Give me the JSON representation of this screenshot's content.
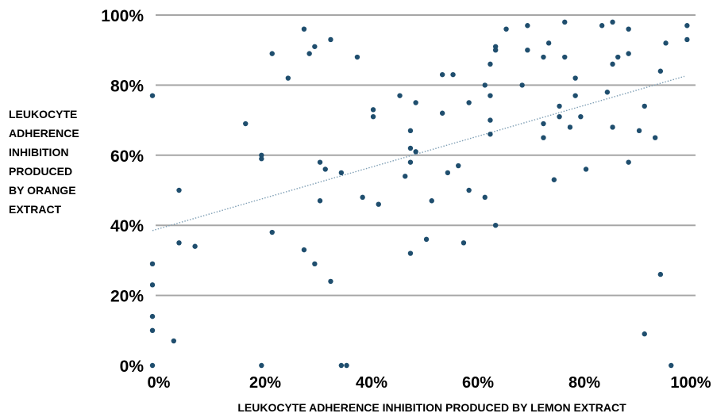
{
  "chart_data": {
    "type": "scatter",
    "title": "",
    "xlabel": "LEUKOCYTE ADHERENCE INHIBITION PRODUCED BY LEMON EXTRACT",
    "ylabel_lines": [
      "LEUKOCYTE",
      "ADHERENCE",
      "INHIBITION",
      "PRODUCED",
      "BY ORANGE",
      "EXTRACT"
    ],
    "xlim": [
      0,
      100
    ],
    "ylim": [
      0,
      100
    ],
    "x_ticks": [
      0,
      20,
      40,
      60,
      80,
      100
    ],
    "x_tick_labels": [
      "0%",
      "20%",
      "40%",
      "60%",
      "80%",
      "100%"
    ],
    "y_ticks": [
      0,
      20,
      40,
      60,
      80,
      100
    ],
    "y_tick_labels": [
      "0%",
      "20%",
      "40%",
      "60%",
      "80%",
      "100%"
    ],
    "grid": "horizontal",
    "colors": {
      "points": "#1f4e6e",
      "gridlines": "#a6a6a6",
      "trendline": "#7f9fb5"
    },
    "trendline": {
      "style": "dotted",
      "x": [
        0,
        100
      ],
      "y": [
        38.5,
        82.5
      ]
    },
    "points": [
      {
        "x": 0,
        "y": 77
      },
      {
        "x": 0,
        "y": 29
      },
      {
        "x": 0,
        "y": 23
      },
      {
        "x": 0,
        "y": 14
      },
      {
        "x": 0,
        "y": 10
      },
      {
        "x": 0,
        "y": 0
      },
      {
        "x": 4,
        "y": 7
      },
      {
        "x": 5,
        "y": 50
      },
      {
        "x": 5,
        "y": 35
      },
      {
        "x": 8,
        "y": 34
      },
      {
        "x": 17.5,
        "y": 69
      },
      {
        "x": 20.5,
        "y": 60
      },
      {
        "x": 20.5,
        "y": 59
      },
      {
        "x": 20.5,
        "y": 0
      },
      {
        "x": 22.5,
        "y": 89
      },
      {
        "x": 22.5,
        "y": 38
      },
      {
        "x": 25.5,
        "y": 82
      },
      {
        "x": 28.5,
        "y": 96
      },
      {
        "x": 28.5,
        "y": 33
      },
      {
        "x": 29.5,
        "y": 89
      },
      {
        "x": 30.5,
        "y": 91
      },
      {
        "x": 30.5,
        "y": 29
      },
      {
        "x": 31.5,
        "y": 58
      },
      {
        "x": 31.5,
        "y": 47
      },
      {
        "x": 32.5,
        "y": 56
      },
      {
        "x": 33.5,
        "y": 93
      },
      {
        "x": 33.5,
        "y": 24
      },
      {
        "x": 35.5,
        "y": 55
      },
      {
        "x": 35.5,
        "y": 0
      },
      {
        "x": 36.5,
        "y": 0
      },
      {
        "x": 38.5,
        "y": 88
      },
      {
        "x": 39.5,
        "y": 48
      },
      {
        "x": 41.5,
        "y": 73
      },
      {
        "x": 41.5,
        "y": 71
      },
      {
        "x": 42.5,
        "y": 46
      },
      {
        "x": 46.5,
        "y": 77
      },
      {
        "x": 47.5,
        "y": 54
      },
      {
        "x": 48.5,
        "y": 67
      },
      {
        "x": 48.5,
        "y": 62
      },
      {
        "x": 48.5,
        "y": 58
      },
      {
        "x": 48.5,
        "y": 32
      },
      {
        "x": 49.5,
        "y": 75
      },
      {
        "x": 49.5,
        "y": 61
      },
      {
        "x": 51.5,
        "y": 36
      },
      {
        "x": 52.5,
        "y": 47
      },
      {
        "x": 54.5,
        "y": 83
      },
      {
        "x": 54.5,
        "y": 72
      },
      {
        "x": 55.5,
        "y": 55
      },
      {
        "x": 56.5,
        "y": 83
      },
      {
        "x": 57.5,
        "y": 57
      },
      {
        "x": 58.5,
        "y": 35
      },
      {
        "x": 59.5,
        "y": 75
      },
      {
        "x": 59.5,
        "y": 50
      },
      {
        "x": 62.5,
        "y": 80
      },
      {
        "x": 62.5,
        "y": 48
      },
      {
        "x": 63.5,
        "y": 86
      },
      {
        "x": 63.5,
        "y": 77
      },
      {
        "x": 63.5,
        "y": 70
      },
      {
        "x": 63.5,
        "y": 66
      },
      {
        "x": 64.5,
        "y": 91
      },
      {
        "x": 64.5,
        "y": 90
      },
      {
        "x": 64.5,
        "y": 40
      },
      {
        "x": 66.5,
        "y": 96
      },
      {
        "x": 69.5,
        "y": 80
      },
      {
        "x": 70.5,
        "y": 97
      },
      {
        "x": 70.5,
        "y": 90
      },
      {
        "x": 73.5,
        "y": 88
      },
      {
        "x": 73.5,
        "y": 69
      },
      {
        "x": 73.5,
        "y": 65
      },
      {
        "x": 74.5,
        "y": 92
      },
      {
        "x": 75.5,
        "y": 53
      },
      {
        "x": 76.5,
        "y": 74
      },
      {
        "x": 76.5,
        "y": 71
      },
      {
        "x": 77.5,
        "y": 98
      },
      {
        "x": 77.5,
        "y": 88
      },
      {
        "x": 78.5,
        "y": 68
      },
      {
        "x": 79.5,
        "y": 82
      },
      {
        "x": 79.5,
        "y": 77
      },
      {
        "x": 80.5,
        "y": 71
      },
      {
        "x": 81.5,
        "y": 56
      },
      {
        "x": 84.5,
        "y": 97
      },
      {
        "x": 85.5,
        "y": 78
      },
      {
        "x": 86.5,
        "y": 98
      },
      {
        "x": 86.5,
        "y": 86
      },
      {
        "x": 86.5,
        "y": 68
      },
      {
        "x": 87.5,
        "y": 88
      },
      {
        "x": 89.5,
        "y": 96
      },
      {
        "x": 89.5,
        "y": 89
      },
      {
        "x": 89.5,
        "y": 58
      },
      {
        "x": 91.5,
        "y": 67
      },
      {
        "x": 92.5,
        "y": 74
      },
      {
        "x": 92.5,
        "y": 9
      },
      {
        "x": 94.5,
        "y": 65
      },
      {
        "x": 95.5,
        "y": 84
      },
      {
        "x": 95.5,
        "y": 26
      },
      {
        "x": 96.5,
        "y": 92
      },
      {
        "x": 97.5,
        "y": 0
      },
      {
        "x": 100.5,
        "y": 97
      },
      {
        "x": 100.5,
        "y": 93
      }
    ]
  }
}
